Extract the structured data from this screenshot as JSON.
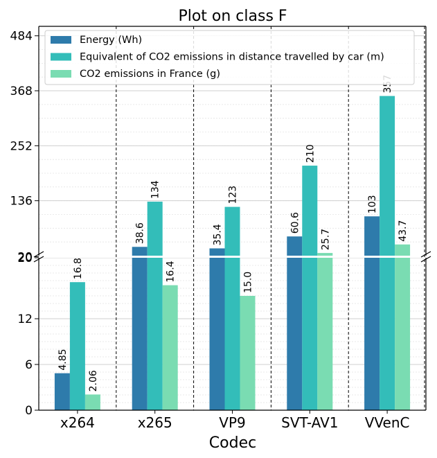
{
  "chart_data": {
    "type": "bar",
    "title": "Plot on class F",
    "xlabel": "Codec",
    "ylabel": "",
    "categories": [
      "x264",
      "x265",
      "VP9",
      "SVT-AV1",
      "VVenC"
    ],
    "series": [
      {
        "name": "Energy (Wh)",
        "color": "#2e7bab",
        "values": [
          4.85,
          38.6,
          35.4,
          60.6,
          103
        ],
        "labels": [
          "4.85",
          "38.6",
          "35.4",
          "60.6",
          "103"
        ]
      },
      {
        "name": "Equivalent of CO2 emissions in distance travelled by car (m)",
        "color": "#33bdb9",
        "values": [
          16.8,
          134,
          123,
          210,
          357
        ],
        "labels": [
          "16.8",
          "134",
          "123",
          "210",
          "357"
        ]
      },
      {
        "name": "CO2 emissions in France (g)",
        "color": "#7adcb2",
        "values": [
          2.06,
          16.4,
          15.0,
          25.7,
          43.7
        ],
        "labels": [
          "2.06",
          "16.4",
          "15.0",
          "25.7",
          "43.7"
        ]
      }
    ],
    "axis_break": true,
    "lower_axis": {
      "ylim": [
        0,
        20
      ],
      "ticks": [
        "0",
        "6",
        "12",
        "20"
      ]
    },
    "upper_axis": {
      "ylim": [
        20,
        504
      ],
      "ticks": [
        "136",
        "252",
        "368",
        "484"
      ]
    },
    "grid": true,
    "legend_position": "top-left"
  }
}
